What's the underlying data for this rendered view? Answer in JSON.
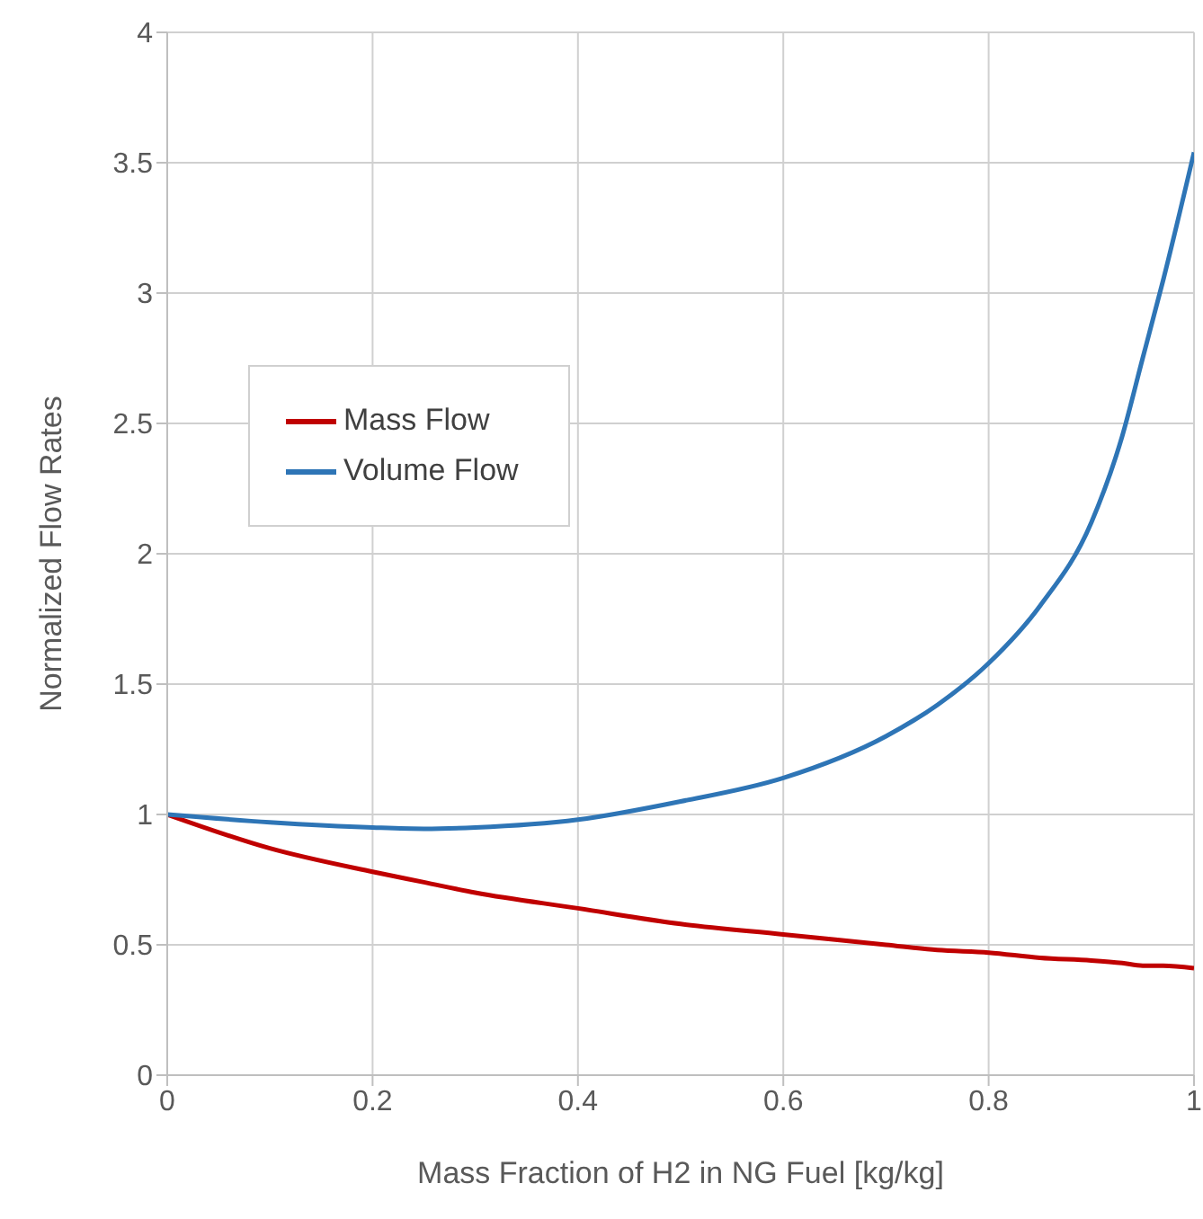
{
  "chart_data": {
    "type": "line",
    "xlabel": "Mass Fraction of H2 in NG Fuel [kg/kg]",
    "ylabel": "Normalized Flow Rates",
    "x": [
      0,
      0.1,
      0.2,
      0.25,
      0.3,
      0.4,
      0.5,
      0.6,
      0.7,
      0.75,
      0.8,
      0.85,
      0.9,
      0.93,
      0.95,
      0.97,
      1
    ],
    "series": [
      {
        "name": "Mass Flow",
        "color": "#c00000",
        "values": [
          1,
          0.87,
          0.78,
          0.74,
          0.7,
          0.64,
          0.58,
          0.54,
          0.5,
          0.48,
          0.47,
          0.45,
          0.44,
          0.43,
          0.42,
          0.42,
          0.41
        ]
      },
      {
        "name": "Volume Flow",
        "color": "#2e75b6",
        "values": [
          1,
          0.97,
          0.95,
          0.945,
          0.95,
          0.98,
          1.05,
          1.14,
          1.3,
          1.42,
          1.58,
          1.8,
          2.12,
          2.45,
          2.75,
          3.05,
          3.54
        ]
      }
    ],
    "xlim": [
      0,
      1
    ],
    "xticks": [
      0,
      0.2,
      0.4,
      0.6,
      0.8,
      1
    ],
    "ylim": [
      0,
      4
    ],
    "yticks": [
      0,
      0.5,
      1,
      1.5,
      2,
      2.5,
      3,
      3.5,
      4
    ],
    "grid": true,
    "legend": "top left",
    "marker": "none",
    "line_style": "solid"
  }
}
